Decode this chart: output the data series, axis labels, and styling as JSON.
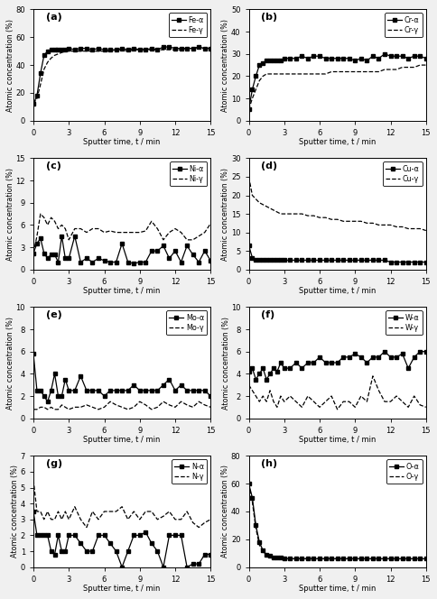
{
  "panels": [
    {
      "label": "(a)",
      "ylabel": "Atomic concentration (%)",
      "xlabel": "Sputter time, t / min",
      "ylim": [
        0,
        80
      ],
      "yticks": [
        0,
        20,
        40,
        60,
        80
      ],
      "legend": [
        "Fe-α",
        "Fe-γ"
      ],
      "alpha_x": [
        0,
        0.3,
        0.6,
        0.9,
        1.2,
        1.5,
        1.8,
        2.1,
        2.4,
        2.7,
        3.0,
        3.5,
        4.0,
        4.5,
        5.0,
        5.5,
        6.0,
        6.5,
        7.0,
        7.5,
        8.0,
        8.5,
        9.0,
        9.5,
        10.0,
        10.5,
        11.0,
        11.5,
        12.0,
        12.5,
        13.0,
        13.5,
        14.0,
        14.5,
        15.0
      ],
      "alpha_y": [
        12,
        18,
        34,
        47,
        50,
        51,
        51,
        51,
        51,
        51,
        52,
        51,
        52,
        52,
        51,
        52,
        51,
        51,
        51,
        52,
        51,
        52,
        51,
        51,
        52,
        51,
        53,
        53,
        52,
        52,
        52,
        52,
        53,
        52,
        52
      ],
      "gamma_x": [
        0,
        0.3,
        0.6,
        0.9,
        1.2,
        1.5,
        1.8,
        2.1,
        2.4,
        2.7,
        3.0,
        3.5,
        4.0,
        4.5,
        5.0,
        5.5,
        6.0,
        6.5,
        7.0,
        7.5,
        8.0,
        8.5,
        9.0,
        9.5,
        10.0,
        10.5,
        11.0,
        11.5,
        12.0,
        12.5,
        13.0,
        13.5,
        14.0,
        14.5,
        15.0
      ],
      "gamma_y": [
        12,
        16,
        26,
        37,
        42,
        45,
        47,
        48,
        49,
        50,
        50,
        50,
        50,
        50,
        50,
        50,
        50,
        50,
        51,
        51,
        50,
        51,
        51,
        51,
        51,
        51,
        51,
        51,
        51,
        51,
        52,
        52,
        52,
        52,
        52
      ]
    },
    {
      "label": "(b)",
      "ylabel": "Atomic concentration (%)",
      "xlabel": "Sputter time, t / min",
      "ylim": [
        0,
        50
      ],
      "yticks": [
        0,
        10,
        20,
        30,
        40,
        50
      ],
      "legend": [
        "Cr-α",
        "Cr-γ"
      ],
      "alpha_x": [
        0,
        0.3,
        0.6,
        0.9,
        1.2,
        1.5,
        1.8,
        2.1,
        2.4,
        2.7,
        3.0,
        3.5,
        4.0,
        4.5,
        5.0,
        5.5,
        6.0,
        6.5,
        7.0,
        7.5,
        8.0,
        8.5,
        9.0,
        9.5,
        10.0,
        10.5,
        11.0,
        11.5,
        12.0,
        12.5,
        13.0,
        13.5,
        14.0,
        14.5,
        15.0
      ],
      "alpha_y": [
        5,
        14,
        20,
        25,
        26,
        27,
        27,
        27,
        27,
        27,
        28,
        28,
        28,
        29,
        28,
        29,
        29,
        28,
        28,
        28,
        28,
        28,
        27,
        28,
        27,
        29,
        28,
        30,
        29,
        29,
        29,
        28,
        29,
        29,
        28
      ],
      "gamma_x": [
        0,
        0.3,
        0.6,
        0.9,
        1.2,
        1.5,
        1.8,
        2.1,
        2.4,
        2.7,
        3.0,
        3.5,
        4.0,
        4.5,
        5.0,
        5.5,
        6.0,
        6.5,
        7.0,
        7.5,
        8.0,
        8.5,
        9.0,
        9.5,
        10.0,
        10.5,
        11.0,
        11.5,
        12.0,
        12.5,
        13.0,
        13.5,
        14.0,
        14.5,
        15.0
      ],
      "gamma_y": [
        5,
        10,
        14,
        18,
        20,
        21,
        21,
        21,
        21,
        21,
        21,
        21,
        21,
        21,
        21,
        21,
        21,
        21,
        22,
        22,
        22,
        22,
        22,
        22,
        22,
        22,
        22,
        23,
        23,
        23,
        24,
        24,
        24,
        25,
        25
      ]
    },
    {
      "label": "(c)",
      "ylabel": "Atomic concentration (%)",
      "xlabel": "Sputter time, t / min",
      "ylim": [
        0,
        15
      ],
      "yticks": [
        0,
        3,
        6,
        9,
        12,
        15
      ],
      "legend": [
        "Ni-α",
        "Ni-γ"
      ],
      "alpha_x": [
        0,
        0.3,
        0.6,
        0.9,
        1.2,
        1.5,
        1.8,
        2.1,
        2.4,
        2.7,
        3.0,
        3.5,
        4.0,
        4.5,
        5.0,
        5.5,
        6.0,
        6.5,
        7.0,
        7.5,
        8.0,
        8.5,
        9.0,
        9.5,
        10.0,
        10.5,
        11.0,
        11.5,
        12.0,
        12.5,
        13.0,
        13.5,
        14.0,
        14.5,
        15.0
      ],
      "alpha_y": [
        2.2,
        3.5,
        4.2,
        2.2,
        1.5,
        2.0,
        2.0,
        1.0,
        4.5,
        1.5,
        1.5,
        4.5,
        1.0,
        1.5,
        1.0,
        1.5,
        1.2,
        1.0,
        1.0,
        3.5,
        1.0,
        0.8,
        1.0,
        1.0,
        2.5,
        2.5,
        3.2,
        1.5,
        2.5,
        1.0,
        3.2,
        2.0,
        1.0,
        2.5,
        1.2
      ],
      "gamma_x": [
        0,
        0.3,
        0.6,
        0.9,
        1.2,
        1.5,
        1.8,
        2.1,
        2.4,
        2.7,
        3.0,
        3.5,
        4.0,
        4.5,
        5.0,
        5.5,
        6.0,
        6.5,
        7.0,
        7.5,
        8.0,
        8.5,
        9.0,
        9.5,
        10.0,
        10.5,
        11.0,
        11.5,
        12.0,
        12.5,
        13.0,
        13.5,
        14.0,
        14.5,
        15.0
      ],
      "gamma_y": [
        2.2,
        4.5,
        7.5,
        7.0,
        6.0,
        7.0,
        6.5,
        5.5,
        6.0,
        5.5,
        4.0,
        5.5,
        5.5,
        5.0,
        5.5,
        5.5,
        5.0,
        5.2,
        5.0,
        5.0,
        5.0,
        5.0,
        5.0,
        5.2,
        6.5,
        5.5,
        4.0,
        5.0,
        5.5,
        5.0,
        4.0,
        4.0,
        4.5,
        5.0,
        6.2
      ]
    },
    {
      "label": "(d)",
      "ylabel": "Atomic concentration (%)",
      "xlabel": "Sputter time, t / min",
      "ylim": [
        0,
        30
      ],
      "yticks": [
        0,
        5,
        10,
        15,
        20,
        25,
        30
      ],
      "legend": [
        "Cu-α",
        "Cu-γ"
      ],
      "alpha_x": [
        0,
        0.3,
        0.6,
        0.9,
        1.2,
        1.5,
        1.8,
        2.1,
        2.4,
        2.7,
        3.0,
        3.5,
        4.0,
        4.5,
        5.0,
        5.5,
        6.0,
        6.5,
        7.0,
        7.5,
        8.0,
        8.5,
        9.0,
        9.5,
        10.0,
        10.5,
        11.0,
        11.5,
        12.0,
        12.5,
        13.0,
        13.5,
        14.0,
        14.5,
        15.0
      ],
      "alpha_y": [
        6.5,
        3.2,
        2.5,
        2.5,
        2.5,
        2.5,
        2.5,
        2.5,
        2.5,
        2.5,
        2.5,
        2.5,
        2.5,
        2.5,
        2.5,
        2.5,
        2.5,
        2.5,
        2.5,
        2.5,
        2.5,
        2.5,
        2.5,
        2.5,
        2.5,
        2.5,
        2.5,
        2.5,
        2.0,
        2.0,
        2.0,
        2.0,
        2.0,
        2.0,
        2.0
      ],
      "gamma_x": [
        0,
        0.3,
        0.6,
        0.9,
        1.2,
        1.5,
        1.8,
        2.1,
        2.4,
        2.7,
        3.0,
        3.5,
        4.0,
        4.5,
        5.0,
        5.5,
        6.0,
        6.5,
        7.0,
        7.5,
        8.0,
        8.5,
        9.0,
        9.5,
        10.0,
        10.5,
        11.0,
        11.5,
        12.0,
        12.5,
        13.0,
        13.5,
        14.0,
        14.5,
        15.0
      ],
      "gamma_y": [
        25.0,
        20.0,
        19.0,
        18.0,
        17.5,
        17.0,
        16.5,
        16.0,
        15.5,
        15.0,
        15.0,
        15.0,
        15.0,
        15.0,
        14.5,
        14.5,
        14.0,
        14.0,
        13.5,
        13.5,
        13.0,
        13.0,
        13.0,
        13.0,
        12.5,
        12.5,
        12.0,
        12.0,
        12.0,
        11.5,
        11.5,
        11.0,
        11.0,
        11.0,
        10.5
      ]
    },
    {
      "label": "(e)",
      "ylabel": "Atomic concentration (%)",
      "xlabel": "Sputter time, t / min",
      "ylim": [
        0,
        10
      ],
      "yticks": [
        0,
        2,
        4,
        6,
        8,
        10
      ],
      "legend": [
        "Mo-α",
        "Mo-γ"
      ],
      "alpha_x": [
        0,
        0.3,
        0.6,
        0.9,
        1.2,
        1.5,
        1.8,
        2.1,
        2.4,
        2.7,
        3.0,
        3.5,
        4.0,
        4.5,
        5.0,
        5.5,
        6.0,
        6.5,
        7.0,
        7.5,
        8.0,
        8.5,
        9.0,
        9.5,
        10.0,
        10.5,
        11.0,
        11.5,
        12.0,
        12.5,
        13.0,
        13.5,
        14.0,
        14.5,
        15.0
      ],
      "alpha_y": [
        5.8,
        2.5,
        2.5,
        2.0,
        1.5,
        2.5,
        4.0,
        2.0,
        2.0,
        3.5,
        2.5,
        2.5,
        3.8,
        2.5,
        2.5,
        2.5,
        2.0,
        2.5,
        2.5,
        2.5,
        2.5,
        3.0,
        2.5,
        2.5,
        2.5,
        2.5,
        3.0,
        3.5,
        2.5,
        3.0,
        2.5,
        2.5,
        2.5,
        2.5,
        2.0
      ],
      "gamma_x": [
        0,
        0.3,
        0.6,
        0.9,
        1.2,
        1.5,
        1.8,
        2.1,
        2.4,
        2.7,
        3.0,
        3.5,
        4.0,
        4.5,
        5.0,
        5.5,
        6.0,
        6.5,
        7.0,
        7.5,
        8.0,
        8.5,
        9.0,
        9.5,
        10.0,
        10.5,
        11.0,
        11.5,
        12.0,
        12.5,
        13.0,
        13.5,
        14.0,
        14.5,
        15.0
      ],
      "gamma_y": [
        0.8,
        0.8,
        1.0,
        1.0,
        0.8,
        1.0,
        0.8,
        0.8,
        1.2,
        1.0,
        0.8,
        1.0,
        1.0,
        1.2,
        1.0,
        0.8,
        1.0,
        1.5,
        1.2,
        1.0,
        0.8,
        1.0,
        1.5,
        1.2,
        0.8,
        1.0,
        1.5,
        1.2,
        1.0,
        1.5,
        1.2,
        1.0,
        1.5,
        1.2,
        1.0
      ]
    },
    {
      "label": "(f)",
      "ylabel": "Atomic concentration (%)",
      "xlabel": "Sputter time, t / min",
      "ylim": [
        0,
        10
      ],
      "yticks": [
        0,
        2,
        4,
        6,
        8,
        10
      ],
      "legend": [
        "W-α",
        "W-γ"
      ],
      "alpha_x": [
        0,
        0.3,
        0.6,
        0.9,
        1.2,
        1.5,
        1.8,
        2.1,
        2.4,
        2.7,
        3.0,
        3.5,
        4.0,
        4.5,
        5.0,
        5.5,
        6.0,
        6.5,
        7.0,
        7.5,
        8.0,
        8.5,
        9.0,
        9.5,
        10.0,
        10.5,
        11.0,
        11.5,
        12.0,
        12.5,
        13.0,
        13.5,
        14.0,
        14.5,
        15.0
      ],
      "alpha_y": [
        4.2,
        4.5,
        3.5,
        4.0,
        4.5,
        3.5,
        4.0,
        4.5,
        4.2,
        5.0,
        4.5,
        4.5,
        5.0,
        4.5,
        5.0,
        5.0,
        5.5,
        5.0,
        5.0,
        5.0,
        5.5,
        5.5,
        5.8,
        5.5,
        5.0,
        5.5,
        5.5,
        6.0,
        5.5,
        5.5,
        5.8,
        4.5,
        5.5,
        6.0,
        6.0
      ],
      "gamma_x": [
        0,
        0.3,
        0.6,
        0.9,
        1.2,
        1.5,
        1.8,
        2.1,
        2.4,
        2.7,
        3.0,
        3.5,
        4.0,
        4.5,
        5.0,
        5.5,
        6.0,
        6.5,
        7.0,
        7.5,
        8.0,
        8.5,
        9.0,
        9.5,
        10.0,
        10.5,
        11.0,
        11.5,
        12.0,
        12.5,
        13.0,
        13.5,
        14.0,
        14.5,
        15.0
      ],
      "gamma_y": [
        3.0,
        2.5,
        2.0,
        1.5,
        2.0,
        1.5,
        2.5,
        1.5,
        1.0,
        2.0,
        1.5,
        2.0,
        1.5,
        1.0,
        2.0,
        1.5,
        1.0,
        1.5,
        2.0,
        0.8,
        1.5,
        1.5,
        1.0,
        2.0,
        1.5,
        3.8,
        2.5,
        1.5,
        1.5,
        2.0,
        1.5,
        1.0,
        2.0,
        1.2,
        1.0
      ]
    },
    {
      "label": "(g)",
      "ylabel": "Atomic concentration (%)",
      "xlabel": "Sputter time, t / min",
      "ylim": [
        0,
        7
      ],
      "yticks": [
        0,
        1,
        2,
        3,
        4,
        5,
        6,
        7
      ],
      "legend": [
        "N-α",
        "N-γ"
      ],
      "alpha_x": [
        0,
        0.3,
        0.6,
        0.9,
        1.2,
        1.5,
        1.8,
        2.1,
        2.4,
        2.7,
        3.0,
        3.5,
        4.0,
        4.5,
        5.0,
        5.5,
        6.0,
        6.5,
        7.0,
        7.5,
        8.0,
        8.5,
        9.0,
        9.5,
        10.0,
        10.5,
        11.0,
        11.5,
        12.0,
        12.5,
        13.0,
        13.5,
        14.0,
        14.5,
        15.0
      ],
      "alpha_y": [
        3.5,
        2.0,
        2.0,
        2.0,
        2.0,
        1.0,
        0.8,
        2.0,
        1.0,
        1.0,
        2.0,
        2.0,
        1.5,
        1.0,
        1.0,
        2.0,
        2.0,
        1.5,
        1.0,
        0.0,
        1.0,
        2.0,
        2.0,
        2.2,
        1.5,
        1.0,
        0.0,
        2.0,
        2.0,
        2.0,
        0.0,
        0.2,
        0.2,
        0.8,
        0.8
      ],
      "gamma_x": [
        0,
        0.3,
        0.6,
        0.9,
        1.2,
        1.5,
        1.8,
        2.1,
        2.4,
        2.7,
        3.0,
        3.5,
        4.0,
        4.5,
        5.0,
        5.5,
        6.0,
        6.5,
        7.0,
        7.5,
        8.0,
        8.5,
        9.0,
        9.5,
        10.0,
        10.5,
        11.0,
        11.5,
        12.0,
        12.5,
        13.0,
        13.5,
        14.0,
        14.5,
        15.0
      ],
      "gamma_y": [
        5.5,
        3.5,
        3.5,
        3.0,
        3.5,
        3.0,
        3.0,
        3.5,
        3.0,
        3.5,
        3.0,
        3.8,
        3.0,
        2.5,
        3.5,
        3.0,
        3.5,
        3.5,
        3.5,
        3.8,
        3.0,
        3.5,
        3.0,
        3.5,
        3.5,
        3.0,
        3.2,
        3.5,
        3.0,
        3.0,
        3.5,
        2.8,
        2.5,
        2.8,
        3.0
      ]
    },
    {
      "label": "(h)",
      "ylabel": "Atomic concentration (%)",
      "xlabel": "Sputter time, t / min",
      "ylim": [
        0,
        80
      ],
      "yticks": [
        0,
        20,
        40,
        60,
        80
      ],
      "legend": [
        "O-α",
        "O-γ"
      ],
      "alpha_x": [
        0,
        0.3,
        0.6,
        0.9,
        1.2,
        1.5,
        1.8,
        2.1,
        2.4,
        2.7,
        3.0,
        3.5,
        4.0,
        4.5,
        5.0,
        5.5,
        6.0,
        6.5,
        7.0,
        7.5,
        8.0,
        8.5,
        9.0,
        9.5,
        10.0,
        10.5,
        11.0,
        11.5,
        12.0,
        12.5,
        13.0,
        13.5,
        14.0,
        14.5,
        15.0
      ],
      "alpha_y": [
        60,
        50,
        30,
        18,
        12,
        9,
        8,
        7,
        7,
        7,
        6,
        6,
        6,
        6,
        6,
        6,
        6,
        6,
        6,
        6,
        6,
        6,
        6,
        6,
        6,
        6,
        6,
        6,
        6,
        6,
        6,
        6,
        6,
        6,
        6
      ],
      "gamma_x": [
        0,
        0.3,
        0.6,
        0.9,
        1.2,
        1.5,
        1.8,
        2.1,
        2.4,
        2.7,
        3.0,
        3.5,
        4.0,
        4.5,
        5.0,
        5.5,
        6.0,
        6.5,
        7.0,
        7.5,
        8.0,
        8.5,
        9.0,
        9.5,
        10.0,
        10.5,
        11.0,
        11.5,
        12.0,
        12.5,
        13.0,
        13.5,
        14.0,
        14.5,
        15.0
      ],
      "gamma_y": [
        60,
        47,
        28,
        16,
        11,
        9,
        8,
        7,
        7,
        7,
        6,
        6,
        6,
        6,
        6,
        6,
        6,
        6,
        6,
        6,
        6,
        6,
        6,
        6,
        6,
        6,
        6,
        6,
        6,
        6,
        6,
        6,
        6,
        6,
        6
      ]
    }
  ],
  "figure_bg": "#f0f0f0",
  "axes_bg": "#ffffff"
}
